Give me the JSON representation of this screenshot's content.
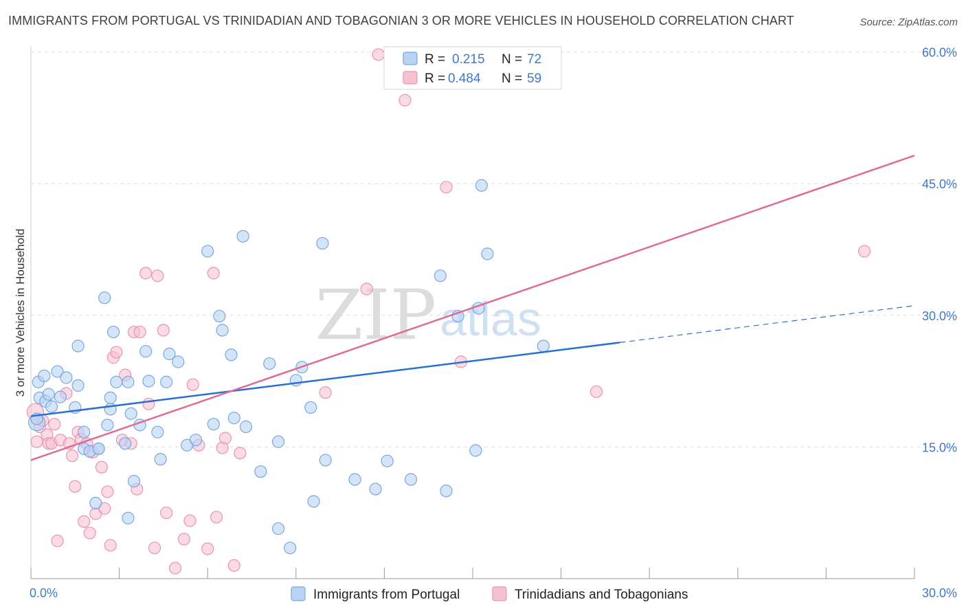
{
  "title": "IMMIGRANTS FROM PORTUGAL VS TRINIDADIAN AND TOBAGONIAN 3 OR MORE VEHICLES IN HOUSEHOLD CORRELATION CHART",
  "source": "Source: ZipAtlas.com",
  "watermark": {
    "zip": "ZIP",
    "atlas": "atlas"
  },
  "colors": {
    "blue_fill": "#b9d3f3",
    "blue_stroke": "#7aa6e0",
    "blue_line": "#2a6fd0",
    "pink_fill": "#f6c2d3",
    "pink_stroke": "#ea93b1",
    "pink_line": "#e06a95",
    "axis_text": "#3f78c8",
    "grid": "#dddddd"
  },
  "legend": {
    "r_label": "R =",
    "n_label": "N =",
    "rows": [
      {
        "r": "0.215",
        "n": "72"
      },
      {
        "r": "0.484",
        "n": "59"
      }
    ]
  },
  "chart_data": {
    "type": "scatter",
    "title": "IMMIGRANTS FROM PORTUGAL VS TRINIDADIAN AND TOBAGONIAN 3 OR MORE VEHICLES IN HOUSEHOLD CORRELATION CHART",
    "xlabel": "",
    "ylabel": "3 or more Vehicles in Household",
    "xlim": [
      0,
      30
    ],
    "ylim": [
      0,
      60
    ],
    "x_tick_labels": [
      "0.0%",
      "30.0%"
    ],
    "y_ticks": [
      15,
      30,
      45,
      60
    ],
    "y_tick_labels": [
      "15.0%",
      "30.0%",
      "45.0%",
      "60.0%"
    ],
    "grid": true,
    "legend_position": "top-center",
    "series": [
      {
        "name": "Immigrants from Portugal",
        "r": 0.215,
        "n": 72,
        "trend": {
          "x0": 0,
          "y0": 18.5,
          "x1": 20,
          "y1": 26.9,
          "dashed_to_x": 30,
          "dashed_to_y": 31.1
        },
        "points": [
          [
            0.2,
            17.8
          ],
          [
            0.2,
            18.2
          ],
          [
            0.25,
            22.4
          ],
          [
            0.3,
            20.6
          ],
          [
            0.45,
            23.1
          ],
          [
            0.5,
            20.2
          ],
          [
            0.6,
            21.0
          ],
          [
            0.7,
            19.6
          ],
          [
            0.9,
            23.6
          ],
          [
            1.0,
            20.7
          ],
          [
            1.2,
            22.9
          ],
          [
            1.5,
            19.5
          ],
          [
            1.6,
            22.0
          ],
          [
            1.6,
            26.5
          ],
          [
            1.8,
            16.7
          ],
          [
            1.8,
            14.8
          ],
          [
            2.0,
            14.5
          ],
          [
            2.2,
            8.6
          ],
          [
            2.3,
            14.8
          ],
          [
            2.3,
            14.8
          ],
          [
            2.5,
            32.0
          ],
          [
            2.6,
            17.5
          ],
          [
            2.7,
            19.3
          ],
          [
            2.7,
            20.6
          ],
          [
            2.8,
            28.1
          ],
          [
            2.9,
            22.4
          ],
          [
            3.2,
            15.4
          ],
          [
            3.3,
            6.9
          ],
          [
            3.3,
            22.4
          ],
          [
            3.4,
            18.8
          ],
          [
            3.5,
            11.1
          ],
          [
            3.7,
            17.5
          ],
          [
            3.9,
            25.9
          ],
          [
            4.0,
            22.5
          ],
          [
            4.3,
            16.7
          ],
          [
            4.4,
            13.6
          ],
          [
            4.6,
            22.4
          ],
          [
            4.7,
            25.6
          ],
          [
            5.0,
            24.7
          ],
          [
            5.3,
            15.2
          ],
          [
            5.6,
            15.8
          ],
          [
            6.0,
            37.3
          ],
          [
            6.2,
            17.6
          ],
          [
            6.4,
            29.9
          ],
          [
            6.5,
            28.3
          ],
          [
            6.8,
            25.5
          ],
          [
            6.9,
            18.3
          ],
          [
            7.2,
            39.0
          ],
          [
            7.3,
            17.3
          ],
          [
            7.8,
            12.2
          ],
          [
            8.1,
            24.5
          ],
          [
            8.4,
            15.6
          ],
          [
            8.4,
            5.7
          ],
          [
            8.8,
            3.5
          ],
          [
            9.0,
            22.6
          ],
          [
            9.2,
            24.1
          ],
          [
            9.5,
            19.5
          ],
          [
            9.6,
            8.8
          ],
          [
            9.9,
            38.2
          ],
          [
            10.0,
            13.5
          ],
          [
            11.0,
            11.3
          ],
          [
            11.7,
            10.2
          ],
          [
            12.1,
            13.4
          ],
          [
            12.9,
            11.3
          ],
          [
            13.9,
            34.5
          ],
          [
            14.1,
            10.0
          ],
          [
            14.5,
            29.9
          ],
          [
            15.1,
            14.6
          ],
          [
            15.5,
            37.0
          ],
          [
            15.3,
            44.8
          ],
          [
            15.2,
            30.8
          ],
          [
            17.4,
            26.5
          ]
        ]
      },
      {
        "name": "Trinidadians and Tobagonians",
        "r": 0.484,
        "n": 59,
        "trend": {
          "x0": 0,
          "y0": 13.5,
          "x1": 30,
          "y1": 48.2
        },
        "points": [
          [
            0.15,
            19.0
          ],
          [
            0.2,
            15.6
          ],
          [
            0.3,
            17.3
          ],
          [
            0.4,
            18.0
          ],
          [
            0.55,
            16.4
          ],
          [
            0.6,
            15.4
          ],
          [
            0.7,
            15.4
          ],
          [
            0.8,
            17.6
          ],
          [
            0.9,
            4.3
          ],
          [
            1.0,
            15.8
          ],
          [
            1.2,
            21.1
          ],
          [
            1.3,
            15.4
          ],
          [
            1.4,
            14.0
          ],
          [
            1.5,
            10.5
          ],
          [
            1.6,
            16.7
          ],
          [
            1.7,
            15.9
          ],
          [
            1.8,
            6.5
          ],
          [
            1.9,
            15.4
          ],
          [
            2.0,
            5.2
          ],
          [
            2.1,
            14.4
          ],
          [
            2.2,
            7.4
          ],
          [
            2.4,
            12.7
          ],
          [
            2.5,
            8.0
          ],
          [
            2.6,
            9.9
          ],
          [
            2.7,
            3.8
          ],
          [
            2.8,
            25.2
          ],
          [
            2.9,
            25.8
          ],
          [
            3.1,
            15.8
          ],
          [
            3.2,
            23.2
          ],
          [
            3.4,
            15.4
          ],
          [
            3.5,
            28.1
          ],
          [
            3.6,
            10.2
          ],
          [
            3.7,
            28.1
          ],
          [
            3.9,
            34.8
          ],
          [
            4.0,
            19.9
          ],
          [
            4.2,
            3.5
          ],
          [
            4.3,
            34.5
          ],
          [
            4.5,
            28.3
          ],
          [
            4.6,
            7.5
          ],
          [
            4.9,
            1.2
          ],
          [
            5.2,
            4.5
          ],
          [
            5.4,
            6.6
          ],
          [
            5.5,
            22.1
          ],
          [
            5.7,
            15.2
          ],
          [
            6.0,
            3.4
          ],
          [
            6.2,
            34.8
          ],
          [
            6.3,
            7.0
          ],
          [
            6.5,
            14.9
          ],
          [
            6.6,
            16.0
          ],
          [
            6.9,
            1.5
          ],
          [
            7.1,
            14.3
          ],
          [
            10.0,
            21.2
          ],
          [
            11.4,
            33.0
          ],
          [
            11.8,
            59.7
          ],
          [
            12.7,
            54.5
          ],
          [
            14.1,
            44.6
          ],
          [
            14.6,
            24.7
          ],
          [
            19.2,
            21.3
          ],
          [
            28.3,
            37.3
          ]
        ]
      }
    ]
  }
}
